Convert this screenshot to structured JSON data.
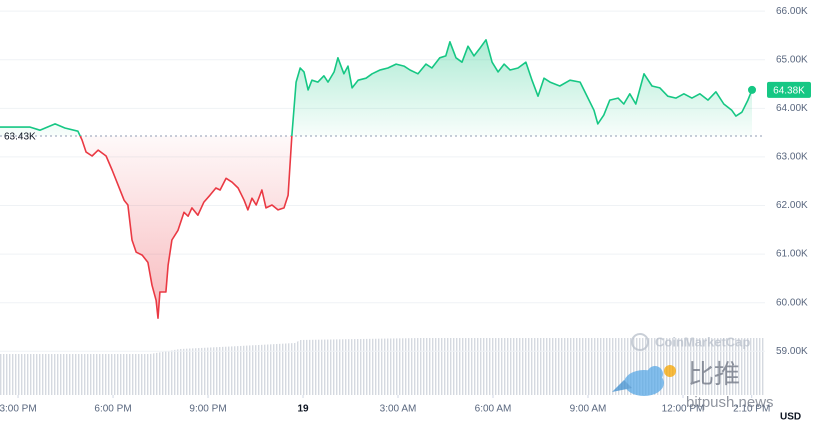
{
  "chart_data": {
    "type": "line",
    "x": [
      -0.57,
      0.38,
      0.69,
      1.17,
      1.48,
      1.89,
      2.02,
      2.15,
      2.34,
      2.53,
      2.78,
      2.97,
      3.16,
      3.35,
      3.47,
      3.6,
      3.73,
      3.92,
      4.1,
      4.23,
      4.36,
      4.42,
      4.48,
      4.67,
      4.74,
      4.86,
      5.05,
      5.24,
      5.37,
      5.49,
      5.68,
      5.87,
      6.06,
      6.25,
      6.38,
      6.57,
      6.76,
      6.95,
      7.14,
      7.26,
      7.39,
      7.52,
      7.7,
      7.83,
      8.02,
      8.21,
      8.4,
      8.53,
      8.65,
      8.78,
      8.91,
      9.03,
      9.16,
      9.28,
      9.47,
      9.66,
      9.79,
      9.98,
      10.1,
      10.29,
      10.42,
      10.55,
      10.74,
      10.99,
      11.18,
      11.43,
      11.68,
      11.94,
      12.19,
      12.38,
      12.63,
      12.88,
      13.07,
      13.32,
      13.51,
      13.64,
      13.83,
      14.02,
      14.21,
      14.4,
      14.59,
      14.78,
      14.97,
      15.16,
      15.35,
      15.54,
      15.79,
      16.04,
      16.23,
      16.42,
      16.61,
      16.8,
      17.11,
      17.43,
      17.75,
      18.0,
      18.19,
      18.31,
      18.5,
      18.69,
      18.95,
      19.13,
      19.32,
      19.51,
      19.77,
      20.02,
      20.27,
      20.52,
      20.78,
      21.03,
      21.28,
      21.53,
      21.79,
      22.04,
      22.29,
      22.54,
      22.67,
      22.86,
      23.05,
      23.18
    ],
    "values": [
      63615,
      63615,
      63550,
      63680,
      63595,
      63530,
      63350,
      63100,
      63020,
      63140,
      63020,
      62730,
      62420,
      62110,
      62010,
      61290,
      61040,
      60980,
      60830,
      60360,
      60050,
      59680,
      60220,
      60220,
      60770,
      61290,
      61490,
      61860,
      61780,
      61950,
      61800,
      62070,
      62210,
      62360,
      62320,
      62560,
      62480,
      62360,
      62110,
      61910,
      62150,
      62010,
      62320,
      61950,
      62010,
      61910,
      61950,
      62210,
      63450,
      64540,
      64830,
      64750,
      64380,
      64580,
      64540,
      64670,
      64540,
      64750,
      65040,
      64710,
      64870,
      64420,
      64580,
      64620,
      64710,
      64790,
      64830,
      64910,
      64870,
      64790,
      64710,
      64910,
      64830,
      65040,
      65080,
      65370,
      65040,
      64950,
      65280,
      65080,
      65240,
      65410,
      64950,
      64750,
      64910,
      64790,
      64830,
      64950,
      64580,
      64250,
      64620,
      64540,
      64460,
      64580,
      64540,
      64210,
      63960,
      63680,
      63860,
      64170,
      64210,
      64090,
      64300,
      64090,
      64710,
      64460,
      64420,
      64250,
      64210,
      64300,
      64210,
      64300,
      64170,
      64340,
      64090,
      63960,
      63840,
      63920,
      64170,
      64380
    ],
    "color_up": "#16c784",
    "color_down": "#ea3943",
    "baseline": {
      "value": 63430,
      "label": "63.43K"
    },
    "last_price": {
      "value": 64380,
      "label": "64.38K"
    },
    "xlim": [
      -0.57,
      23.59
    ],
    "xticks": [
      {
        "value": 0,
        "label": "3:00 PM"
      },
      {
        "value": 3,
        "label": "6:00 PM"
      },
      {
        "value": 6,
        "label": "9:00 PM"
      },
      {
        "value": 9,
        "label": "19"
      },
      {
        "value": 12,
        "label": "3:00 AM"
      },
      {
        "value": 15,
        "label": "6:00 AM"
      },
      {
        "value": 18,
        "label": "9:00 AM"
      },
      {
        "value": 21,
        "label": "12:00 PM"
      },
      {
        "value": 23.17,
        "label": "2:10 PM"
      }
    ],
    "ylim": [
      58100,
      66230
    ],
    "yticks": [
      {
        "value": 66000,
        "label": "66.00K"
      },
      {
        "value": 65000,
        "label": "65.00K"
      },
      {
        "value": 64000,
        "label": "64.00K"
      },
      {
        "value": 63000,
        "label": "63.00K"
      },
      {
        "value": 62000,
        "label": "62.00K"
      },
      {
        "value": 61000,
        "label": "61.00K"
      },
      {
        "value": 60000,
        "label": "60.00K"
      },
      {
        "value": 59000,
        "label": "59.00K"
      }
    ],
    "grid": true,
    "currency": "USD",
    "watermark": {
      "brand": "CoinMarketCap",
      "name": "比推",
      "site": "bitpush.news"
    }
  }
}
